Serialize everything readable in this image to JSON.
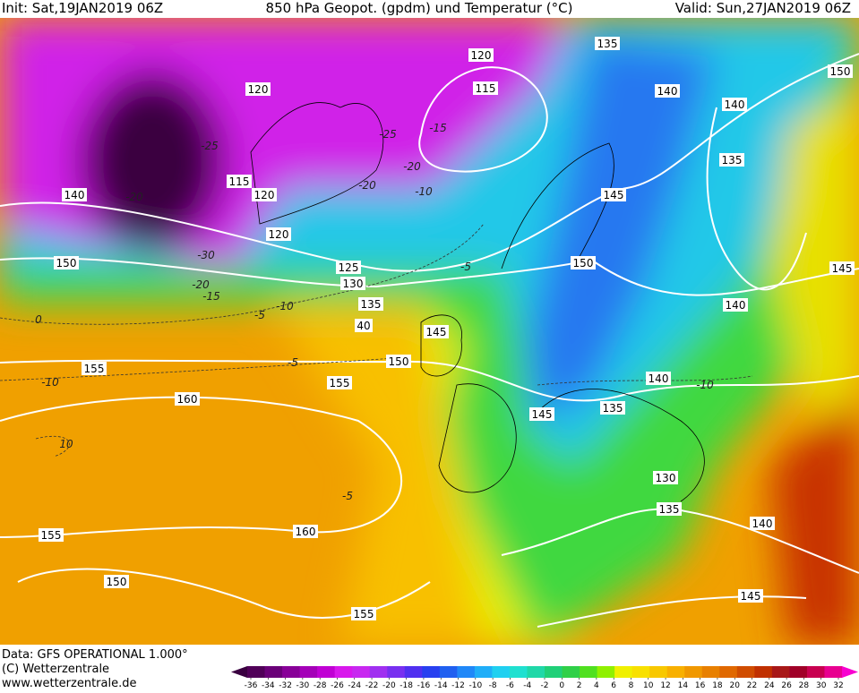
{
  "header": {
    "init": "Init: Sat,19JAN2019 06Z",
    "title": "850 hPa Geopot. (gpdm) und Temperatur (°C)",
    "valid": "Valid: Sun,27JAN2019 06Z"
  },
  "footer": {
    "data": "Data: GFS OPERATIONAL 1.000°",
    "copyright": "(C) Wetterzentrale",
    "url": "www.wetterzentrale.de"
  },
  "colorbar": {
    "ticks": [
      -36,
      -34,
      -32,
      -30,
      -28,
      -26,
      -24,
      -22,
      -20,
      -18,
      -16,
      -14,
      -12,
      -10,
      -8,
      -6,
      -4,
      -2,
      0,
      2,
      4,
      6,
      8,
      10,
      12,
      14,
      16,
      18,
      20,
      22,
      24,
      26,
      28,
      30,
      32
    ],
    "colors": [
      "#3a0040",
      "#500058",
      "#6a0078",
      "#880098",
      "#a400b8",
      "#c000d4",
      "#d818ec",
      "#c828f0",
      "#a030f0",
      "#7830f0",
      "#5030f0",
      "#2840f0",
      "#2060f0",
      "#2088f8",
      "#20aef8",
      "#20d0f0",
      "#20e0d0",
      "#20d8a8",
      "#20d078",
      "#30d048",
      "#50e020",
      "#90f000",
      "#f0f000",
      "#f8e000",
      "#f8c800",
      "#f8b000",
      "#f09800",
      "#e88000",
      "#e06800",
      "#d04c00",
      "#c03000",
      "#a81818",
      "#a00028",
      "#c80050",
      "#e80090",
      "#f800d0"
    ]
  },
  "geopotential_labels": [
    "120",
    "115",
    "120",
    "120",
    "140",
    "150",
    "125",
    "130",
    "135",
    "40",
    "145",
    "150",
    "155",
    "155",
    "160",
    "120",
    "115",
    "135",
    "140",
    "140",
    "135",
    "150",
    "145",
    "150",
    "145",
    "140",
    "140",
    "135",
    "145",
    "130",
    "135",
    "140",
    "145",
    "155",
    "160",
    "150",
    "155"
  ],
  "temperature_labels": [
    "-25",
    "-20",
    "-15",
    "-20",
    "-10",
    "-30",
    "-20",
    "-15",
    "-5",
    "-10",
    "0",
    "-5",
    "-10",
    "10",
    "-5",
    "-5",
    "-10",
    "-20",
    "-25"
  ]
}
